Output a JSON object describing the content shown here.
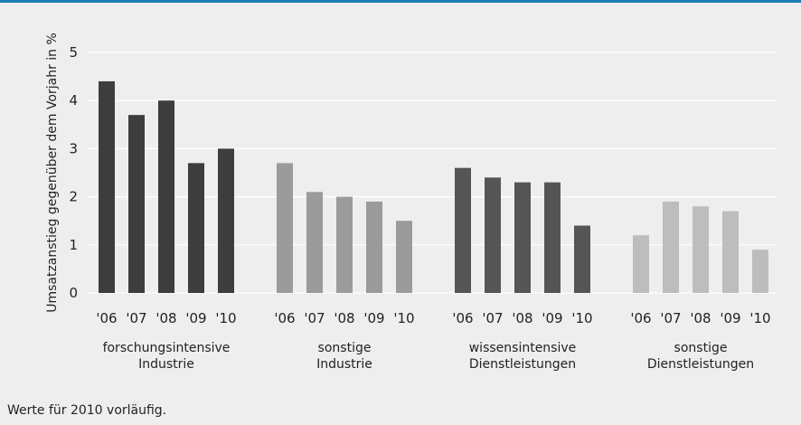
{
  "chart_data": {
    "type": "bar",
    "ylabel": "Umsatzanstieg gegenüber dem Vorjahr in %",
    "ylim": [
      0,
      5
    ],
    "yticks": [
      0,
      1,
      2,
      3,
      4,
      5
    ],
    "grid": true,
    "categories": [
      "'06",
      "'07",
      "'08",
      "'09",
      "'10"
    ],
    "groups": [
      {
        "label_lines": [
          "forschungsintensive",
          "Industrie"
        ],
        "color": "#3d3d3d",
        "values": [
          4.4,
          3.7,
          4.0,
          2.7,
          3.0
        ]
      },
      {
        "label_lines": [
          "sonstige",
          "Industrie"
        ],
        "color": "#9b9b9b",
        "values": [
          2.7,
          2.1,
          2.0,
          1.9,
          1.5
        ]
      },
      {
        "label_lines": [
          "wissensintensive",
          "Dienstleistungen"
        ],
        "color": "#555555",
        "values": [
          2.6,
          2.4,
          2.3,
          2.3,
          1.4
        ]
      },
      {
        "label_lines": [
          "sonstige",
          "Dienstleistungen"
        ],
        "color": "#bdbdbd",
        "values": [
          1.2,
          1.9,
          1.8,
          1.7,
          0.9
        ]
      }
    ]
  },
  "footnote": "Werte für 2010 vorläufig.",
  "colors": {
    "accent_rule": "#1a7fb5",
    "background": "#eeeeee",
    "grid": "#ffffff"
  }
}
